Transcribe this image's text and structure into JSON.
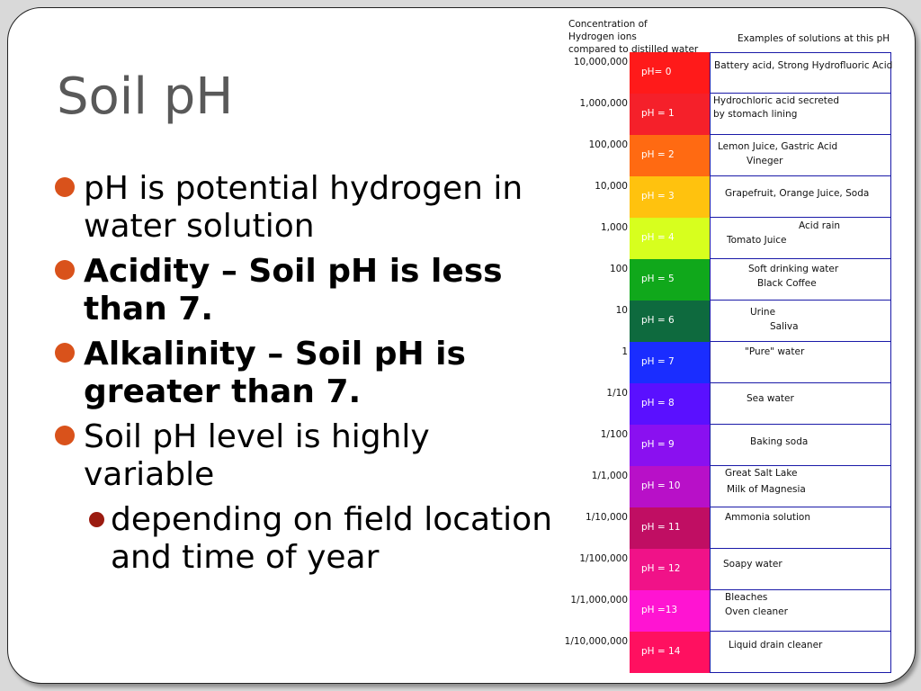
{
  "title": "Soil pH",
  "bullets": [
    {
      "text": "pH is potential hydrogen in water solution",
      "bold": false,
      "level": 1
    },
    {
      "text": "Acidity – Soil pH is less than 7.",
      "bold": true,
      "level": 1
    },
    {
      "text": "Alkalinity – Soil pH is greater than 7.",
      "bold": true,
      "level": 1
    },
    {
      "text": "Soil pH level is highly variable",
      "bold": false,
      "level": 1
    },
    {
      "text": "depending on field location and time of year",
      "bold": false,
      "level": 2
    }
  ],
  "scale": {
    "header_concentration": [
      "Concentration of",
      "Hydrogen ions",
      "compared to distilled water"
    ],
    "header_examples": "Examples of solutions at this pH",
    "rows": [
      {
        "conc": "10,000,000",
        "ph": "pH= 0",
        "color": "#ff1a1a",
        "examples": [
          "Battery acid, Strong Hydrofluoric Acid"
        ]
      },
      {
        "conc": "1,000,000",
        "ph": "pH = 1",
        "color": "#f5202a",
        "examples": [
          "Hydrochloric acid secreted",
          "by stomach lining"
        ]
      },
      {
        "conc": "100,000",
        "ph": "pH = 2",
        "color": "#ff6a12",
        "examples": [
          "Lemon Juice, Gastric Acid",
          "Vineger"
        ]
      },
      {
        "conc": "10,000",
        "ph": "pH = 3",
        "color": "#ffc20e",
        "examples": [
          "Grapefruit, Orange Juice, Soda"
        ]
      },
      {
        "conc": "1,000",
        "ph": "pH = 4",
        "color": "#d7ff1e",
        "examples": [
          "Acid rain",
          "Tomato Juice"
        ]
      },
      {
        "conc": "100",
        "ph": "pH = 5",
        "color": "#10a81b",
        "examples": [
          "Soft drinking water",
          "Black Coffee"
        ]
      },
      {
        "conc": "10",
        "ph": "pH = 6",
        "color": "#0e6a3e",
        "examples": [
          "Urine",
          "Saliva"
        ]
      },
      {
        "conc": "1",
        "ph": "pH = 7",
        "color": "#1a2dff",
        "examples": [
          "\"Pure\" water"
        ]
      },
      {
        "conc": "1/10",
        "ph": "pH = 8",
        "color": "#5a10ff",
        "examples": [
          "Sea water"
        ]
      },
      {
        "conc": "1/100",
        "ph": "pH = 9",
        "color": "#8a10f0",
        "examples": [
          "Baking soda"
        ]
      },
      {
        "conc": "1/1,000",
        "ph": "pH = 10",
        "color": "#b810c8",
        "examples": [
          "Great Salt  Lake",
          "Milk of Magnesia"
        ]
      },
      {
        "conc": "1/10,000",
        "ph": "pH = 11",
        "color": "#c00e63",
        "examples": [
          "Ammonia solution"
        ]
      },
      {
        "conc": "1/100,000",
        "ph": "pH = 12",
        "color": "#f01288",
        "examples": [
          "Soapy water"
        ]
      },
      {
        "conc": "1/1,000,000",
        "ph": "pH =13",
        "color": "#ff14d2",
        "examples": [
          "Bleaches",
          "Oven cleaner"
        ]
      },
      {
        "conc": "1/10,000,000",
        "ph": "pH = 14",
        "color": "#ff1060",
        "examples": [
          "Liquid drain cleaner"
        ]
      }
    ]
  }
}
